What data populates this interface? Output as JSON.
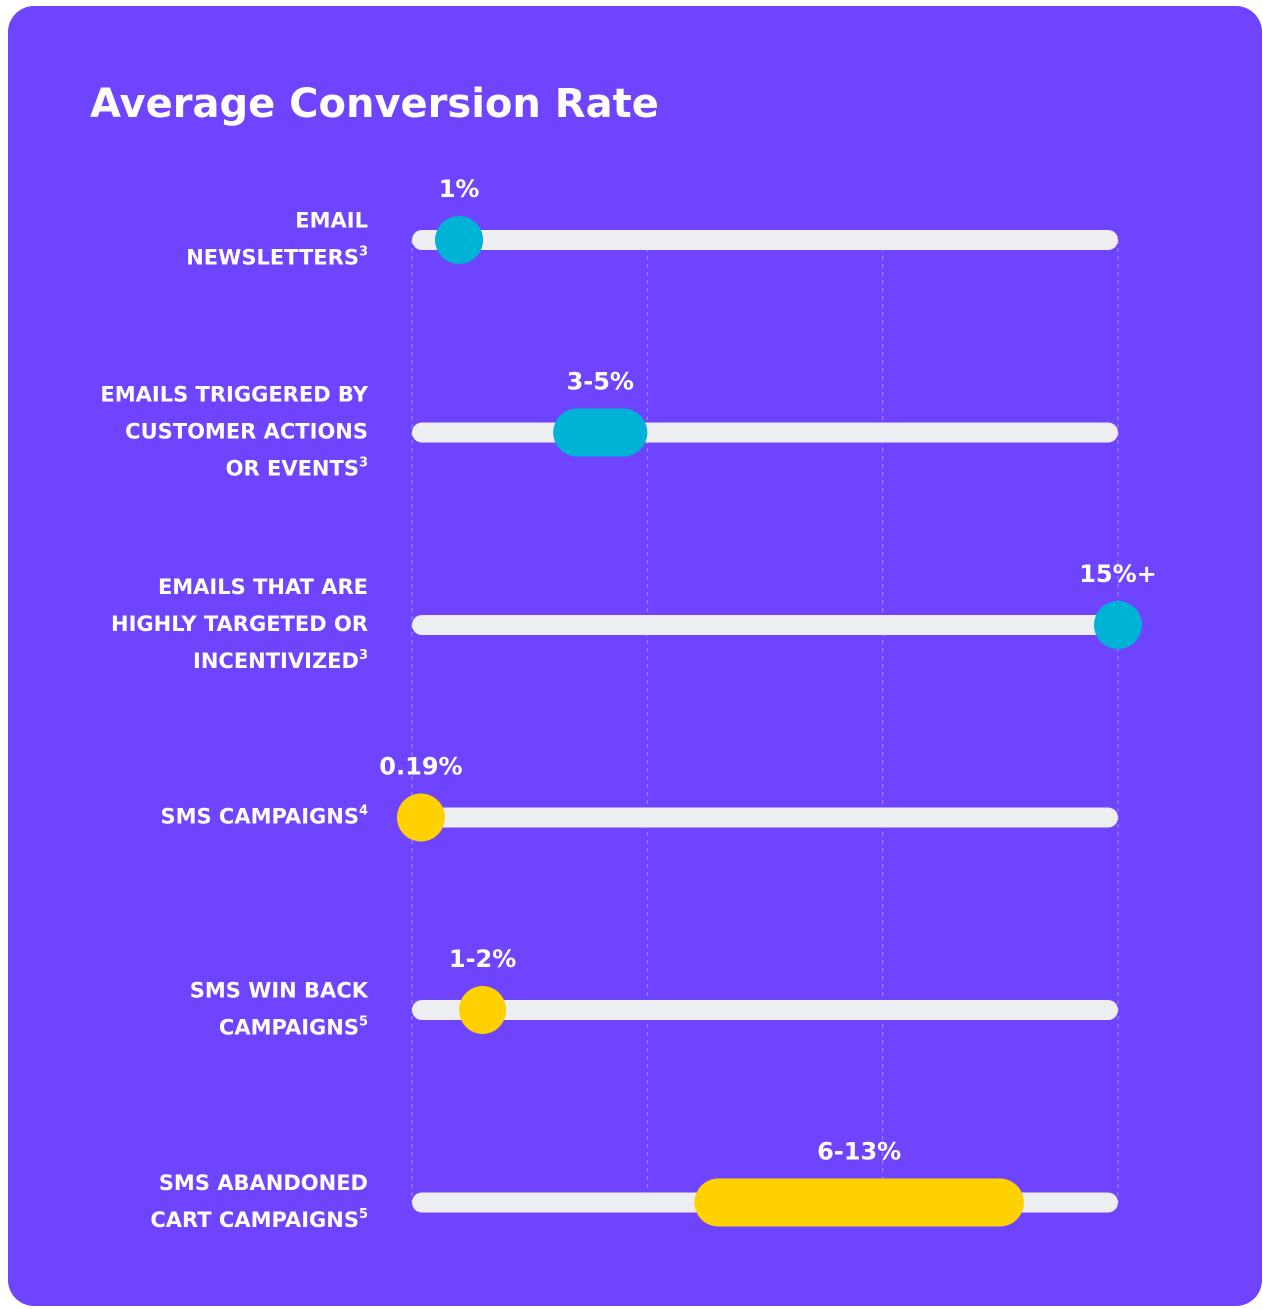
{
  "chart_data": {
    "type": "range-dot",
    "title": "Average Conversion Rate",
    "xlim": [
      0,
      15
    ],
    "xticks": [
      0,
      5,
      10,
      15
    ],
    "grid": true,
    "track_color": "#eceef2",
    "items": [
      {
        "label_lines": [
          "EMAIL",
          "NEWSLETTERS"
        ],
        "note": "3",
        "value": 1,
        "value_label": "1%",
        "color": "#00b2d6"
      },
      {
        "label_lines": [
          "EMAILS TRIGGERED BY",
          "CUSTOMER ACTIONS",
          "OR EVENTS"
        ],
        "note": "3",
        "low": 3,
        "high": 5,
        "value_label": "3-5%",
        "color": "#00b2d6"
      },
      {
        "label_lines": [
          "EMAILS THAT ARE",
          "HIGHLY TARGETED OR",
          "INCENTIVIZED"
        ],
        "note": "3",
        "value": 15,
        "value_label": "15%+",
        "color": "#00b2d6"
      },
      {
        "label_lines": [
          "SMS CAMPAIGNS"
        ],
        "note": "4",
        "value": 0.19,
        "value_label": "0.19%",
        "color": "#ffd100"
      },
      {
        "label_lines": [
          "SMS WIN BACK",
          "CAMPAIGNS"
        ],
        "note": "5",
        "low": 1,
        "high": 2,
        "value_label": "1-2%",
        "color": "#ffd100"
      },
      {
        "label_lines": [
          "SMS ABANDONED",
          "CART CAMPAIGNS"
        ],
        "note": "5",
        "low": 6,
        "high": 13,
        "value_label": "6-13%",
        "color": "#ffd100"
      }
    ]
  }
}
